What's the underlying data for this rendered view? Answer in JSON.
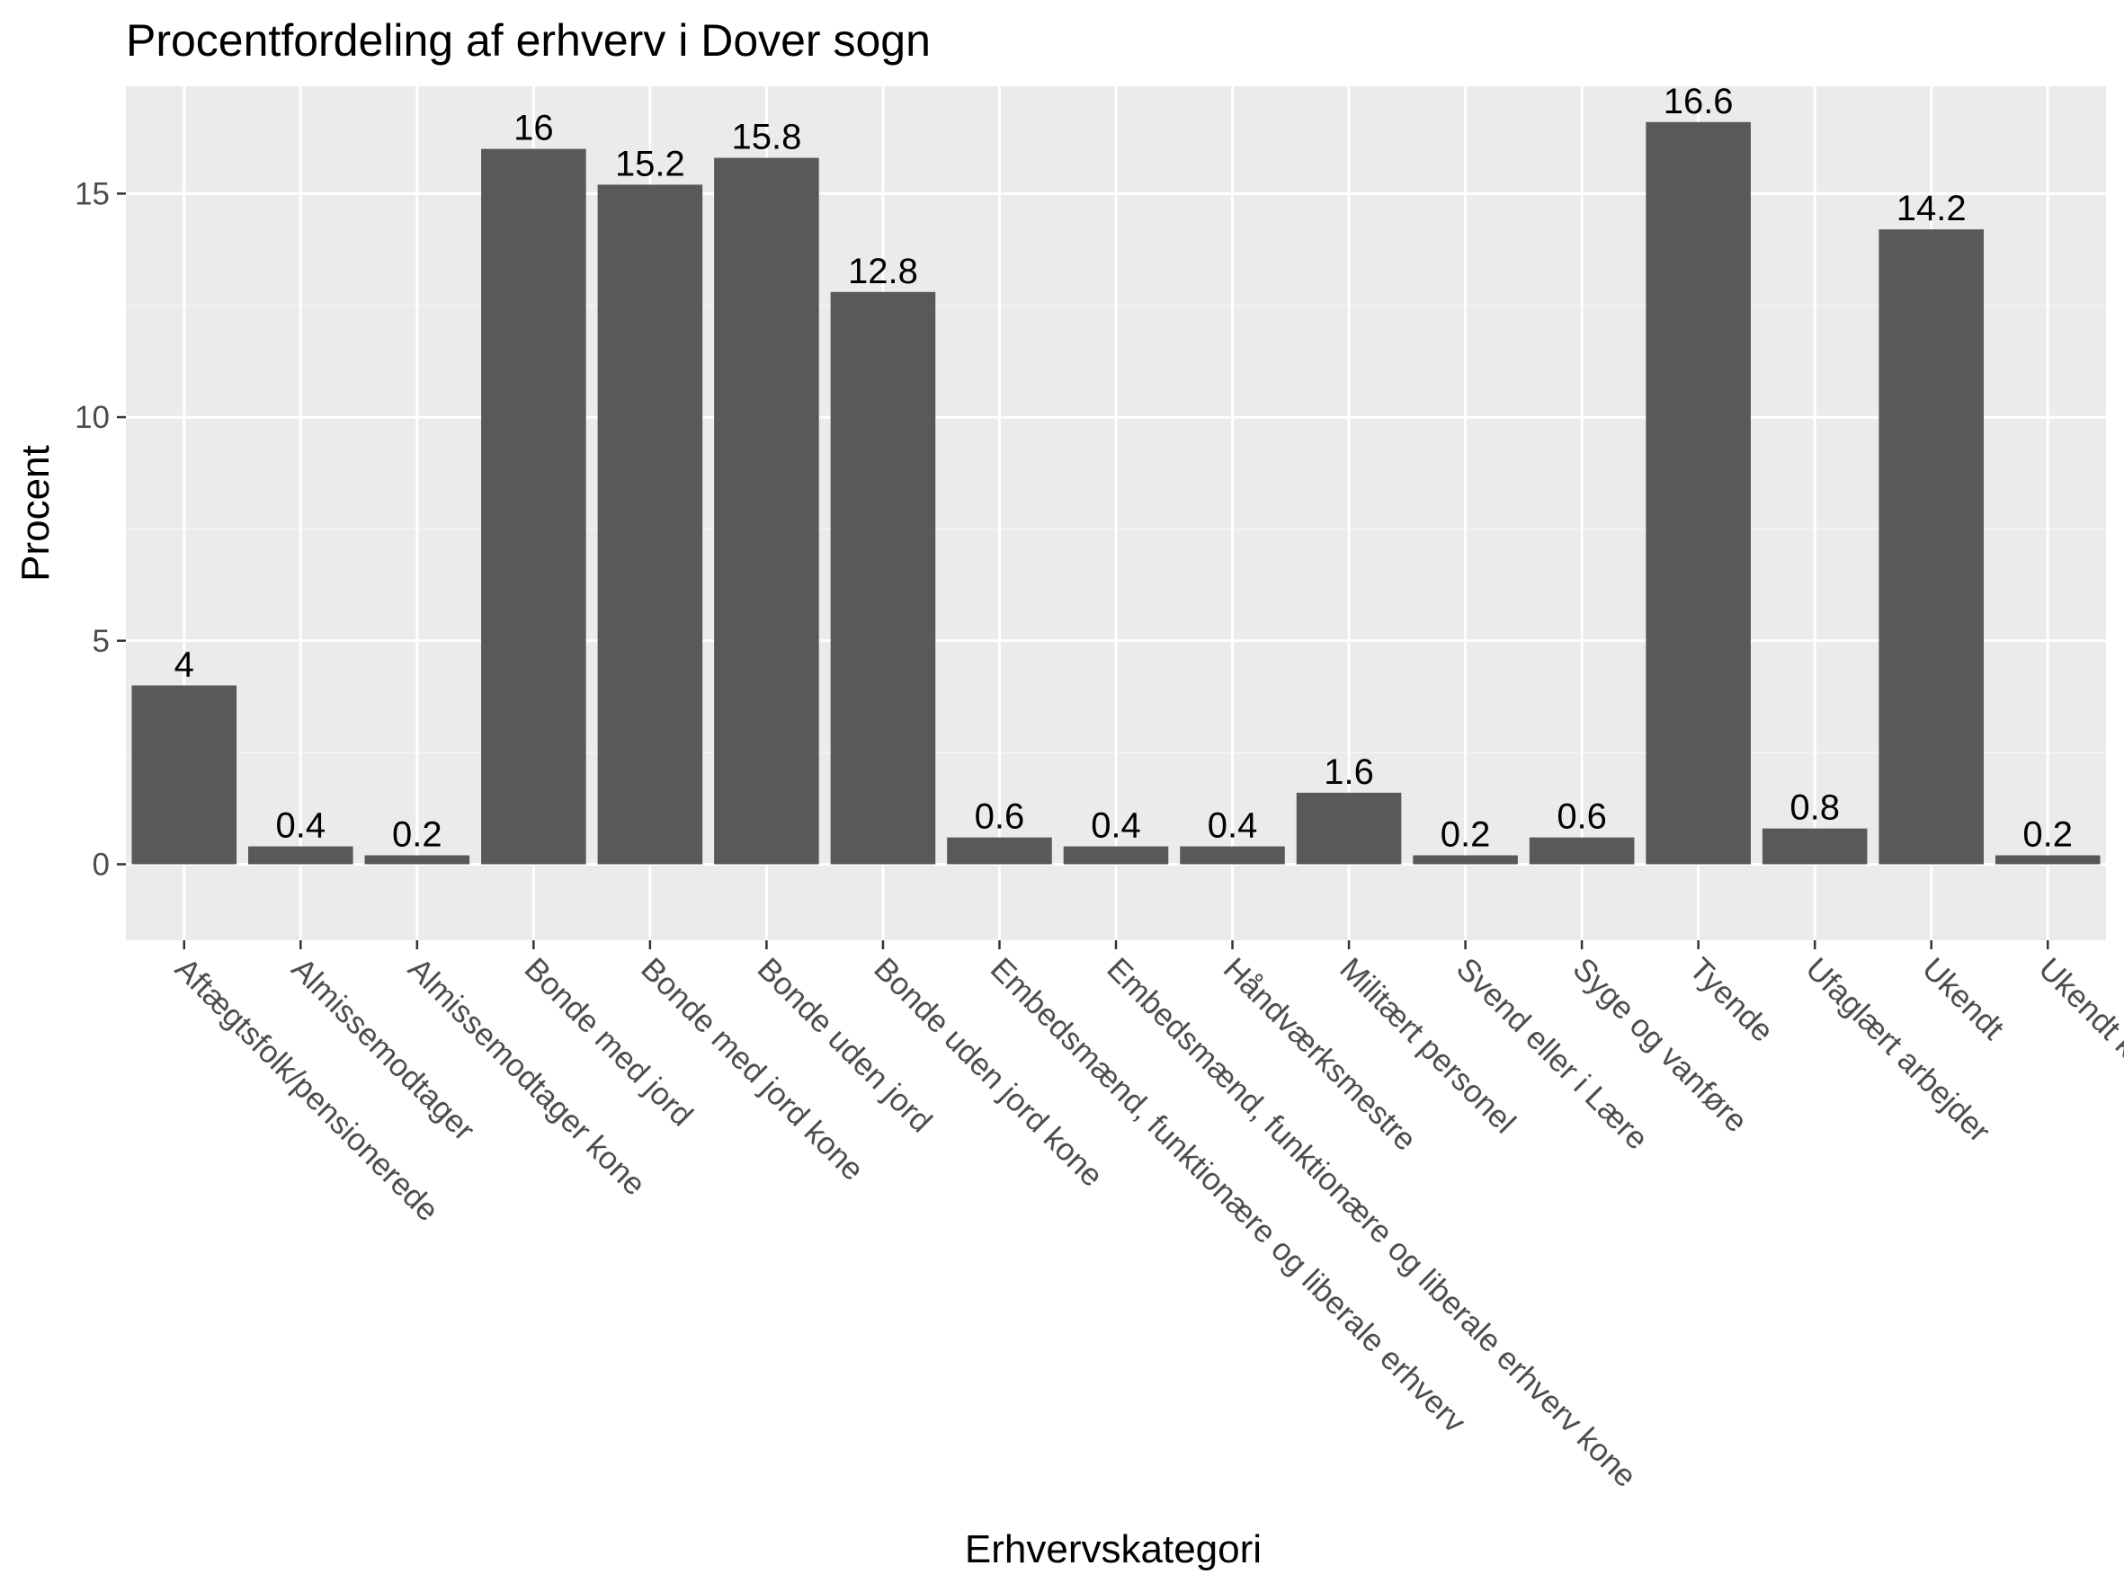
{
  "chart_data": {
    "type": "bar",
    "title": "Procentfordeling af erhverv i Dover sogn",
    "xlabel": "Erhvervskategori",
    "ylabel": "Procent",
    "ylim": [
      -1.7,
      17.4
    ],
    "yticks": [
      0,
      5,
      10,
      15
    ],
    "grid": true,
    "categories": [
      "Aftægtsfolk/pensionerede",
      "Almissemodtager",
      "Almissemodtager kone",
      "Bonde med jord",
      "Bonde med jord kone",
      "Bonde uden jord",
      "Bonde uden jord kone",
      "Embedsmænd, funktionære og liberale erhverv",
      "Embedsmænd, funktionære og liberale erhverv kone",
      "Håndværksmestre",
      "Militært personel",
      "Svend eller i Lære",
      "Syge og vanføre",
      "Tyende",
      "Ufaglært arbejder",
      "Ukendt",
      "Ukendt kone"
    ],
    "values": [
      4,
      0.4,
      0.2,
      16,
      15.2,
      15.8,
      12.8,
      0.6,
      0.4,
      0.4,
      1.6,
      0.2,
      0.6,
      16.6,
      0.8,
      14.2,
      0.2
    ],
    "value_labels": [
      "4",
      "0.4",
      "0.2",
      "16",
      "15.2",
      "15.8",
      "12.8",
      "0.6",
      "0.4",
      "0.4",
      "1.6",
      "0.2",
      "0.6",
      "16.6",
      "0.8",
      "14.2",
      "0.2"
    ],
    "colors": {
      "bar": "#595959",
      "panel": "#ebebeb",
      "grid_major": "#ffffff",
      "grid_minor": "#f5f5f5",
      "tick": "#333333"
    }
  }
}
